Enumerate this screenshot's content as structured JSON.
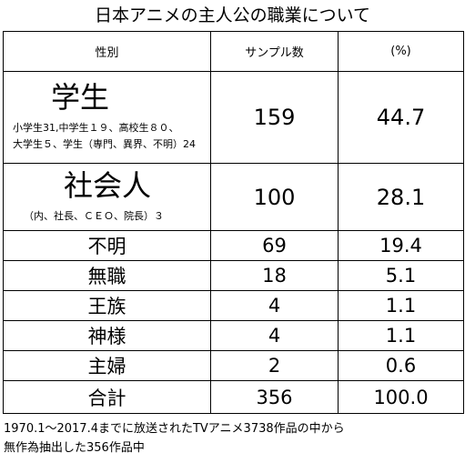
{
  "title": "日本アニメの主人公の職業について",
  "table": {
    "headers": [
      "性別",
      "サンプル数",
      "(%)"
    ],
    "rows": [
      {
        "label": "学生",
        "sub_lines": [
          "小学生31,中学生１９、高校生８０、",
          "大学生５、学生（専門、異界、不明）24"
        ],
        "count": "159",
        "percent": "44.7"
      },
      {
        "label": "社会人",
        "sub_lines": [
          "（内、社長、ＣＥＯ、院長）３"
        ],
        "count": "100",
        "percent": "28.1"
      },
      {
        "label": "不明",
        "count": "69",
        "percent": "19.4"
      },
      {
        "label": "無職",
        "count": "18",
        "percent": "5.1"
      },
      {
        "label": "王族",
        "count": "4",
        "percent": "1.1"
      },
      {
        "label": "神様",
        "count": "4",
        "percent": "1.1"
      },
      {
        "label": "主婦",
        "count": "2",
        "percent": "0.6"
      },
      {
        "label": "合計",
        "count": "356",
        "percent": "100.0"
      }
    ]
  },
  "footnote": [
    "1970.1～2017.4までに放送されたTVアニメ3738作品の中から",
    "無作為抽出した356作品中"
  ]
}
